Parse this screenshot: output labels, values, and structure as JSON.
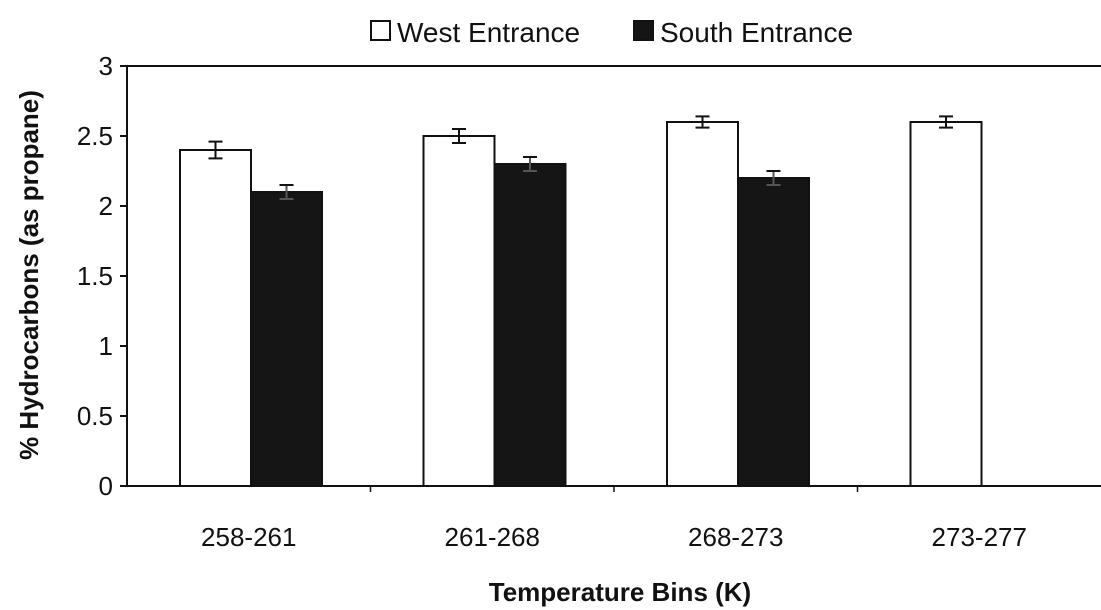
{
  "chart_data": {
    "type": "bar",
    "title": "",
    "xlabel": "Temperature Bins (K)",
    "ylabel": "% Hydrocarbons (as propane)",
    "categories": [
      "258-261",
      "261-268",
      "268-273",
      "273-277"
    ],
    "series": [
      {
        "name": "West Entrance",
        "values": [
          2.4,
          2.5,
          2.6,
          2.6
        ],
        "errors": [
          0.06,
          0.05,
          0.04,
          0.04
        ],
        "fill": "#ffffff"
      },
      {
        "name": "South Entrance",
        "values": [
          2.1,
          2.3,
          2.2,
          null
        ],
        "errors": [
          0.05,
          0.05,
          0.05,
          null
        ],
        "fill": "#151515"
      }
    ],
    "ylim": [
      0,
      3
    ],
    "yticks": [
      0,
      0.5,
      1,
      1.5,
      2,
      2.5,
      3
    ],
    "ytick_labels": [
      "0",
      "0.5",
      "1",
      "1.5",
      "2",
      "2.5",
      "3"
    ],
    "grid": false,
    "legend_position": "top"
  }
}
